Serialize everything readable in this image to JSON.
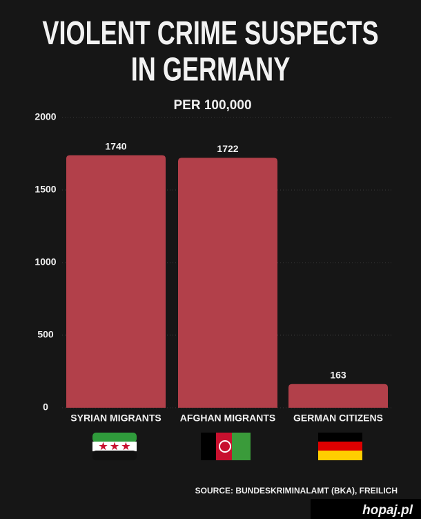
{
  "chart_data": {
    "type": "bar",
    "title": "VIOLENT CRIME SUSPECTS IN GERMANY",
    "subtitle": "PER 100,000",
    "categories": [
      "SYRIAN MIGRANTS",
      "AFGHAN MIGRANTS",
      "GERMAN CITIZENS"
    ],
    "values": [
      1740,
      1722,
      163
    ],
    "color": "#b2404a",
    "ylim": [
      0,
      2000
    ],
    "yticks": [
      0,
      500,
      1000,
      1500,
      2000
    ],
    "grid": true,
    "source": "SOURCE:  BUNDESKRIMINALAMT (BKA), FREILICH",
    "watermark": "hopaj.pl"
  }
}
